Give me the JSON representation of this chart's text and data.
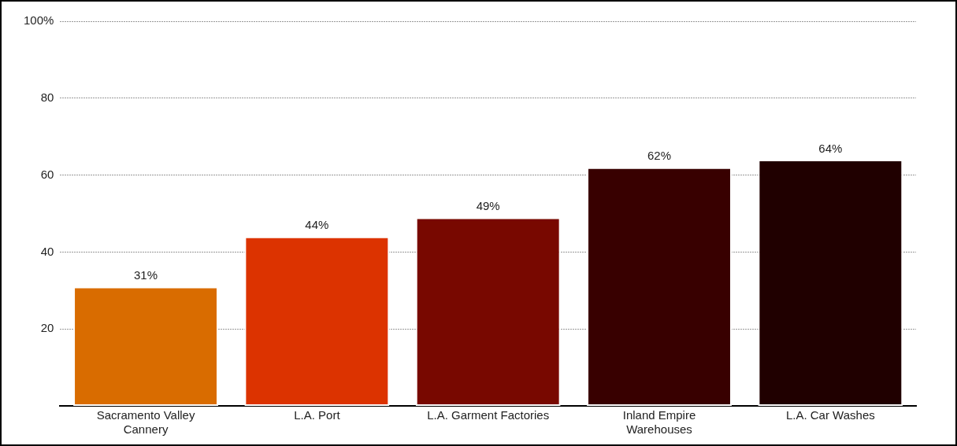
{
  "chart_data": {
    "type": "bar",
    "categories": [
      "Sacramento Valley Cannery",
      "L.A. Port",
      "L.A. Garment Factories",
      "Inland Empire Warehouses",
      "L.A. Car Washes"
    ],
    "values": [
      31,
      44,
      49,
      62,
      64
    ],
    "colors": [
      "#d96c00",
      "#dc3300",
      "#780800",
      "#380000",
      "#200000"
    ],
    "value_labels": [
      "31%",
      "44%",
      "49%",
      "62%",
      "64%"
    ],
    "ylim": [
      0,
      100
    ],
    "yticks": [
      20,
      40,
      60,
      80,
      {
        "value": 100,
        "label": "100%"
      }
    ],
    "grid": "y"
  }
}
